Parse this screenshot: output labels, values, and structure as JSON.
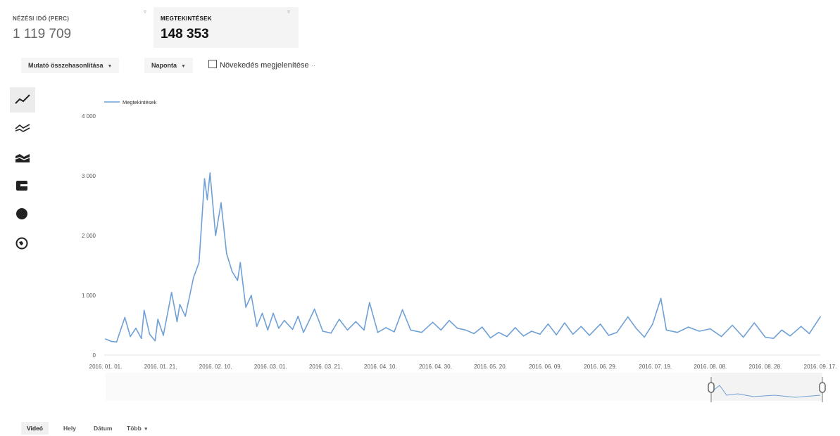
{
  "metrics": [
    {
      "label": "NÉZÉSI IDŐ (PERC)",
      "value": "1 119 709"
    },
    {
      "label": "MEGTEKINTÉSEK",
      "value": "148 353"
    }
  ],
  "toolbar": {
    "compare_label": "Mutató összehasonlítása",
    "period_label": "Naponta",
    "growth_label": "Növekedés megjelenítése"
  },
  "chart_types": [
    "line-chart-icon",
    "multi-line-chart-icon",
    "stacked-area-chart-icon",
    "bar-chart-icon",
    "pie-chart-icon",
    "map-globe-icon"
  ],
  "bottom_tabs": [
    "Videó",
    "Hely",
    "Dátum",
    "Több"
  ],
  "colors": {
    "series": "#6fa0d6",
    "selected_card": "#f4f4f4"
  },
  "chart_data": {
    "type": "line",
    "series": [
      {
        "name": "Megtekintések"
      }
    ],
    "legend_position": "top-left",
    "ylim": [
      0,
      4000
    ],
    "yticks": [
      "0",
      "1 000",
      "2 000",
      "3 000",
      "4 000"
    ],
    "xlim": [
      "2016-01-01",
      "2016-09-17"
    ],
    "xticks": [
      "2016. 01. 01.",
      "2016. 01. 21.",
      "2016. 02. 10.",
      "2016. 03. 01.",
      "2016. 03. 21.",
      "2016. 04. 10.",
      "2016. 04. 30.",
      "2016. 05. 20.",
      "2016. 06. 09.",
      "2016. 06. 29.",
      "2016. 07. 19.",
      "2016. 08. 08.",
      "2016. 08. 28.",
      "2016. 09. 17."
    ],
    "points": [
      [
        "2016-01-01",
        270
      ],
      [
        "2016-01-03",
        230
      ],
      [
        "2016-01-05",
        220
      ],
      [
        "2016-01-08",
        630
      ],
      [
        "2016-01-10",
        310
      ],
      [
        "2016-01-12",
        450
      ],
      [
        "2016-01-14",
        280
      ],
      [
        "2016-01-15",
        750
      ],
      [
        "2016-01-17",
        350
      ],
      [
        "2016-01-19",
        240
      ],
      [
        "2016-01-20",
        600
      ],
      [
        "2016-01-22",
        330
      ],
      [
        "2016-01-25",
        1050
      ],
      [
        "2016-01-27",
        560
      ],
      [
        "2016-01-28",
        850
      ],
      [
        "2016-01-30",
        650
      ],
      [
        "2016-02-02",
        1300
      ],
      [
        "2016-02-04",
        1550
      ],
      [
        "2016-02-06",
        2950
      ],
      [
        "2016-02-07",
        2600
      ],
      [
        "2016-02-08",
        3050
      ],
      [
        "2016-02-10",
        2000
      ],
      [
        "2016-02-12",
        2550
      ],
      [
        "2016-02-14",
        1700
      ],
      [
        "2016-02-16",
        1400
      ],
      [
        "2016-02-18",
        1250
      ],
      [
        "2016-02-19",
        1550
      ],
      [
        "2016-02-21",
        800
      ],
      [
        "2016-02-23",
        1000
      ],
      [
        "2016-02-25",
        480
      ],
      [
        "2016-02-27",
        700
      ],
      [
        "2016-02-29",
        420
      ],
      [
        "2016-03-02",
        700
      ],
      [
        "2016-03-04",
        450
      ],
      [
        "2016-03-06",
        580
      ],
      [
        "2016-03-09",
        430
      ],
      [
        "2016-03-11",
        650
      ],
      [
        "2016-03-13",
        380
      ],
      [
        "2016-03-17",
        770
      ],
      [
        "2016-03-20",
        400
      ],
      [
        "2016-03-23",
        370
      ],
      [
        "2016-03-26",
        600
      ],
      [
        "2016-03-29",
        420
      ],
      [
        "2016-04-01",
        560
      ],
      [
        "2016-04-04",
        420
      ],
      [
        "2016-04-06",
        880
      ],
      [
        "2016-04-09",
        380
      ],
      [
        "2016-04-12",
        460
      ],
      [
        "2016-04-15",
        390
      ],
      [
        "2016-04-18",
        760
      ],
      [
        "2016-04-21",
        420
      ],
      [
        "2016-04-25",
        380
      ],
      [
        "2016-04-29",
        550
      ],
      [
        "2016-05-02",
        420
      ],
      [
        "2016-05-05",
        580
      ],
      [
        "2016-05-08",
        450
      ],
      [
        "2016-05-11",
        420
      ],
      [
        "2016-05-14",
        360
      ],
      [
        "2016-05-17",
        470
      ],
      [
        "2016-05-20",
        290
      ],
      [
        "2016-05-23",
        380
      ],
      [
        "2016-05-26",
        310
      ],
      [
        "2016-05-29",
        460
      ],
      [
        "2016-06-01",
        320
      ],
      [
        "2016-06-04",
        400
      ],
      [
        "2016-06-07",
        350
      ],
      [
        "2016-06-10",
        520
      ],
      [
        "2016-06-13",
        340
      ],
      [
        "2016-06-16",
        540
      ],
      [
        "2016-06-19",
        350
      ],
      [
        "2016-06-22",
        480
      ],
      [
        "2016-06-25",
        330
      ],
      [
        "2016-06-29",
        520
      ],
      [
        "2016-07-02",
        330
      ],
      [
        "2016-07-05",
        380
      ],
      [
        "2016-07-09",
        640
      ],
      [
        "2016-07-12",
        450
      ],
      [
        "2016-07-15",
        300
      ],
      [
        "2016-07-18",
        520
      ],
      [
        "2016-07-21",
        950
      ],
      [
        "2016-07-23",
        420
      ],
      [
        "2016-07-27",
        380
      ],
      [
        "2016-07-31",
        470
      ],
      [
        "2016-08-04",
        400
      ],
      [
        "2016-08-08",
        440
      ],
      [
        "2016-08-12",
        310
      ],
      [
        "2016-08-16",
        500
      ],
      [
        "2016-08-20",
        300
      ],
      [
        "2016-08-24",
        540
      ],
      [
        "2016-08-28",
        300
      ],
      [
        "2016-08-31",
        280
      ],
      [
        "2016-09-03",
        420
      ],
      [
        "2016-09-06",
        320
      ],
      [
        "2016-09-10",
        480
      ],
      [
        "2016-09-13",
        360
      ],
      [
        "2016-09-17",
        640
      ]
    ]
  }
}
